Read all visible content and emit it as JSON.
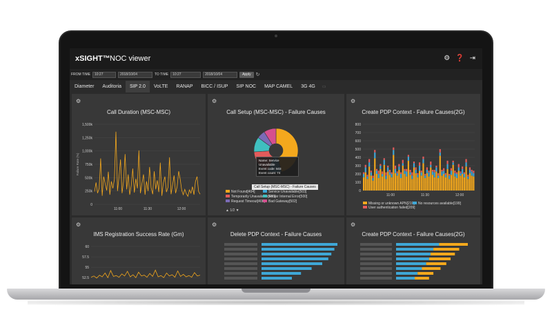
{
  "app": {
    "brand": "xSIGHT™",
    "title": "NOC viewer"
  },
  "top_icons": [
    "gear-icon",
    "help-icon",
    "logout-icon"
  ],
  "filters": {
    "from_time_label": "FROM TIME",
    "from_time": "10:27",
    "from_date": "2018/10/04",
    "to_time_label": "TO TIME",
    "to_time": "10:27",
    "to_date": "2018/10/04",
    "apply_label": "Apply"
  },
  "tabs": [
    {
      "label": "Diameter",
      "active": false
    },
    {
      "label": "Auditoria",
      "active": false
    },
    {
      "label": "SIP 2.0",
      "active": true
    },
    {
      "label": "VoLTE",
      "active": false
    },
    {
      "label": "RANAP",
      "active": false
    },
    {
      "label": "BICC / ISUP",
      "active": false
    },
    {
      "label": "SIP NOC",
      "active": false
    },
    {
      "label": "MAP CAMEL",
      "active": false
    },
    {
      "label": "3G 4G",
      "active": false
    }
  ],
  "panels": {
    "call_duration": {
      "title": "Call Duration (MSC-MSC)"
    },
    "call_setup": {
      "title": "Call Setup (MSC-MSC) - Failure Causes"
    },
    "create_pdp_2g_top": {
      "title": "Create PDP Context - Failure Causes(2G)"
    },
    "ims_registration": {
      "title": "IMS Registration Success Rate (Gm)"
    },
    "delete_pdp": {
      "title": "Delete PDP Context - Failure Causes"
    },
    "create_pdp_2g_bottom": {
      "title": "Create PDP Context - Failure Causes(2G)"
    }
  },
  "tooltip": {
    "name": "Name: Service Unavailable",
    "code": "Event code: 503",
    "count": "Event count: 74",
    "label": "Call Setup (MSC-MSC) - Failure Causes"
  },
  "pager": "▲ 1/2 ▼",
  "colors": {
    "background": "#2b2b2b",
    "panel": "#383838",
    "topbar": "#1b1b1b",
    "orange": "#f4a81d",
    "blue": "#3fa7d6",
    "red": "#e35b5b",
    "purple": "#7b6bb7",
    "pink": "#d64f8f",
    "teal": "#3fbfbf"
  },
  "chart_data": [
    {
      "type": "line",
      "title": "Call Duration (MSC-MSC)",
      "ylabel": "Failure Rate (%)",
      "ylim": [
        0,
        1500000
      ],
      "y_ticks": [
        "1,500k",
        "1,250k",
        "1,000k",
        "750k",
        "500k",
        "250k",
        "0"
      ],
      "x_ticks": [
        "11:00",
        "11:30",
        "12:00"
      ],
      "series": [
        {
          "values": [
            240000,
            410000,
            210000,
            300000,
            860000,
            160000,
            520000,
            380000,
            260000,
            610000,
            180000,
            430000,
            300000,
            470000,
            1360000,
            250000,
            520000,
            840000,
            210000,
            430000,
            940000,
            280000,
            560000,
            180000,
            350000,
            670000,
            220000,
            480000,
            300000,
            1010000,
            210000,
            390000,
            560000,
            180000,
            430000,
            250000,
            700000,
            310000,
            190000,
            620000,
            280000,
            450000,
            230000,
            780000,
            160000,
            410000,
            520000,
            230000,
            320000,
            880000,
            190000,
            360000,
            540000,
            210000,
            330000,
            620000,
            470000,
            260000,
            180000,
            280000,
            200000,
            150000,
            270000,
            210000,
            330000,
            180000,
            430000,
            520000,
            240000,
            190000
          ]
        }
      ]
    },
    {
      "type": "pie",
      "title": "Call Setup (MSC-MSC) - Failure Causes",
      "series": [
        {
          "name": "Not Found[404]",
          "values": [
            46
          ]
        },
        {
          "name": "Service Unavailable[503]",
          "values": [
            10
          ]
        },
        {
          "name": "Temporarily Unavailable[480]",
          "values": [
            18
          ]
        },
        {
          "name": "Server Internal Error[500]",
          "values": [
            11
          ]
        },
        {
          "name": "Request Timeout[408]",
          "values": [
            6
          ]
        },
        {
          "name": "Bad Gateway[502]",
          "values": [
            9
          ]
        }
      ]
    },
    {
      "type": "bar",
      "title": "Create PDP Context - Failure Causes(2G)",
      "ylim": [
        0,
        800
      ],
      "y_ticks": [
        "800",
        "700",
        "600",
        "500",
        "400",
        "300",
        "200",
        "100",
        "0"
      ],
      "x_ticks": [
        "11:00",
        "11:30",
        "12:00"
      ],
      "series": [
        {
          "name": "Missing or unknown APN[219]",
          "values": [
            160,
            220,
            140,
            290,
            180,
            120,
            390,
            200,
            150,
            260,
            170,
            310,
            140,
            230,
            190,
            160,
            430,
            210,
            180,
            250,
            150,
            300,
            200,
            170,
            360,
            190,
            140,
            280,
            210,
            160,
            240,
            180,
            330,
            150,
            210,
            170,
            280,
            190,
            160,
            230,
            150,
            420,
            180,
            200,
            160,
            260,
            140,
            190,
            310,
            170,
            150,
            240,
            180,
            200,
            160,
            290,
            140,
            210,
            180,
            170
          ]
        },
        {
          "name": "No resources available[199]",
          "values": [
            40,
            60,
            30,
            50,
            40,
            30,
            70,
            40,
            50,
            40,
            30,
            60,
            40,
            50,
            30,
            40,
            60,
            50,
            30,
            40,
            50,
            30,
            40,
            60,
            50,
            30,
            40,
            50,
            40,
            30,
            60,
            40,
            50,
            30,
            40,
            50,
            30,
            40,
            60,
            50,
            30,
            40,
            50,
            40,
            30,
            60,
            40,
            50,
            30,
            40,
            50,
            40,
            30,
            60,
            40,
            50,
            30,
            40,
            50,
            40
          ]
        },
        {
          "name": "User authentication failed[209]",
          "values": [
            20,
            30,
            20,
            40,
            20,
            30,
            30,
            20,
            40,
            20,
            30,
            20,
            40,
            20,
            30,
            20,
            30,
            40,
            20,
            30,
            20,
            40,
            20,
            30,
            20,
            30,
            40,
            20,
            30,
            20,
            40,
            20,
            30,
            20,
            30,
            20,
            40,
            20,
            30,
            20,
            30,
            40,
            20,
            30,
            20,
            40,
            20,
            30,
            20,
            30,
            20,
            40,
            20,
            30,
            20,
            40,
            20,
            30,
            20,
            30
          ]
        }
      ]
    },
    {
      "type": "line",
      "title": "IMS Registration Success Rate (Gm)",
      "y_ticks": [
        "60",
        "57.5",
        "55",
        "52.5"
      ],
      "series": [
        {
          "values": [
            52.6,
            52.9,
            52.4,
            53.1,
            52.7,
            53.6,
            52.5,
            54.2,
            52.8,
            53.0,
            52.6,
            53.4,
            52.9,
            54.0,
            52.7,
            53.2,
            52.5,
            53.8,
            52.9,
            53.1,
            52.6,
            53.5,
            52.8,
            54.3,
            52.7,
            53.0,
            52.5,
            53.6,
            52.9,
            53.2,
            52.6,
            54.1,
            52.8,
            53.3,
            52.7,
            53.0,
            52.6,
            53.7,
            52.9,
            53.1
          ]
        }
      ]
    },
    {
      "type": "bar",
      "title": "Delete PDP Context - Failure Causes",
      "categories": [
        "",
        "",
        "",
        "",
        "",
        "",
        "",
        ""
      ],
      "values": [
        100,
        96,
        92,
        88,
        80,
        66,
        52,
        40
      ]
    },
    {
      "type": "bar",
      "title": "Create PDP Context - Failure Causes(2G)",
      "categories": [
        "",
        "",
        "",
        "",
        "",
        "",
        "",
        ""
      ],
      "series": [
        {
          "name": "blue",
          "values": [
            60,
            52,
            48,
            46,
            42,
            36,
            30,
            26
          ]
        },
        {
          "name": "orange",
          "values": [
            40,
            36,
            34,
            30,
            28,
            26,
            22,
            20
          ]
        }
      ]
    }
  ]
}
